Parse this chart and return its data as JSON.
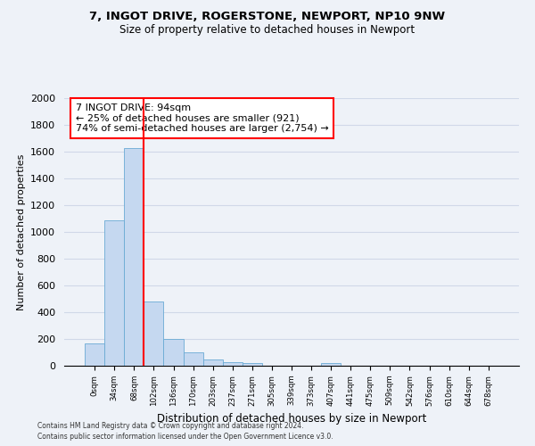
{
  "title1": "7, INGOT DRIVE, ROGERSTONE, NEWPORT, NP10 9NW",
  "title2": "Size of property relative to detached houses in Newport",
  "xlabel": "Distribution of detached houses by size in Newport",
  "ylabel": "Number of detached properties",
  "bar_categories": [
    "0sqm",
    "34sqm",
    "68sqm",
    "102sqm",
    "136sqm",
    "170sqm",
    "203sqm",
    "237sqm",
    "271sqm",
    "305sqm",
    "339sqm",
    "373sqm",
    "407sqm",
    "441sqm",
    "475sqm",
    "509sqm",
    "542sqm",
    "576sqm",
    "610sqm",
    "644sqm",
    "678sqm"
  ],
  "bar_values": [
    165,
    1085,
    1630,
    480,
    200,
    100,
    45,
    30,
    20,
    0,
    0,
    0,
    20,
    0,
    0,
    0,
    0,
    0,
    0,
    0,
    0
  ],
  "bar_color": "#c5d8f0",
  "bar_edge_color": "#6aaad4",
  "vline_color": "red",
  "vline_x": 2.5,
  "annotation_text": "7 INGOT DRIVE: 94sqm\n← 25% of detached houses are smaller (921)\n74% of semi-detached houses are larger (2,754) →",
  "annotation_box_color": "white",
  "annotation_box_edge": "red",
  "ylim": [
    0,
    2000
  ],
  "yticks": [
    0,
    200,
    400,
    600,
    800,
    1000,
    1200,
    1400,
    1600,
    1800,
    2000
  ],
  "footer1": "Contains HM Land Registry data © Crown copyright and database right 2024.",
  "footer2": "Contains public sector information licensed under the Open Government Licence v3.0.",
  "background_color": "#eef2f8",
  "grid_color": "#d0d8e8"
}
